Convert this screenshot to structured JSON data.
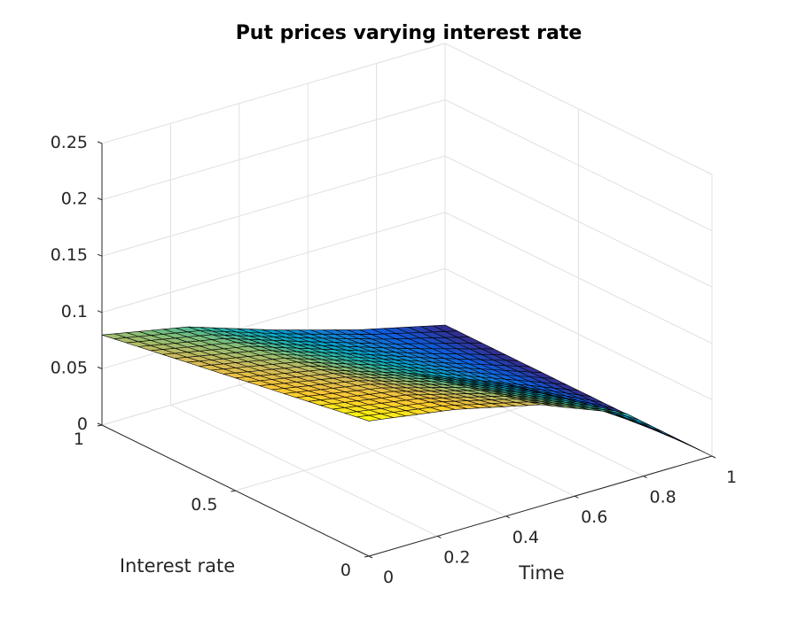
{
  "chart_data": {
    "type": "surface",
    "title": "Put prices varying interest rate",
    "xlabel": "Time",
    "ylabel": "Interest rate",
    "zlabel": "",
    "x_ticks": [
      "0",
      "0.2",
      "0.4",
      "0.6",
      "0.8",
      "1"
    ],
    "y_ticks": [
      "0",
      "0.5",
      "1"
    ],
    "z_ticks": [
      "0",
      "0.05",
      "0.1",
      "0.15",
      "0.2",
      "0.25"
    ],
    "xlim": [
      0,
      1
    ],
    "ylim": [
      0,
      1
    ],
    "zlim": [
      0,
      0.25
    ],
    "grid": true,
    "colormap": [
      "#352a87",
      "#0f5cdd",
      "#1481d6",
      "#06a4ca",
      "#2eb7a4",
      "#87bf77",
      "#d1bb59",
      "#fec832",
      "#f9fb0e"
    ],
    "surface_samples": {
      "note_time": [
        0,
        0.25,
        0.5,
        0.75,
        1
      ],
      "note_rate": [
        0,
        0.5,
        1
      ],
      "z_at_rate_0": [
        0.12,
        0.108,
        0.09,
        0.06,
        0
      ],
      "z_at_rate_0_5": [
        0.1,
        0.085,
        0.06,
        0.03,
        0
      ],
      "z_at_rate_1": [
        0.08,
        0.065,
        0.04,
        0.018,
        0
      ]
    }
  }
}
